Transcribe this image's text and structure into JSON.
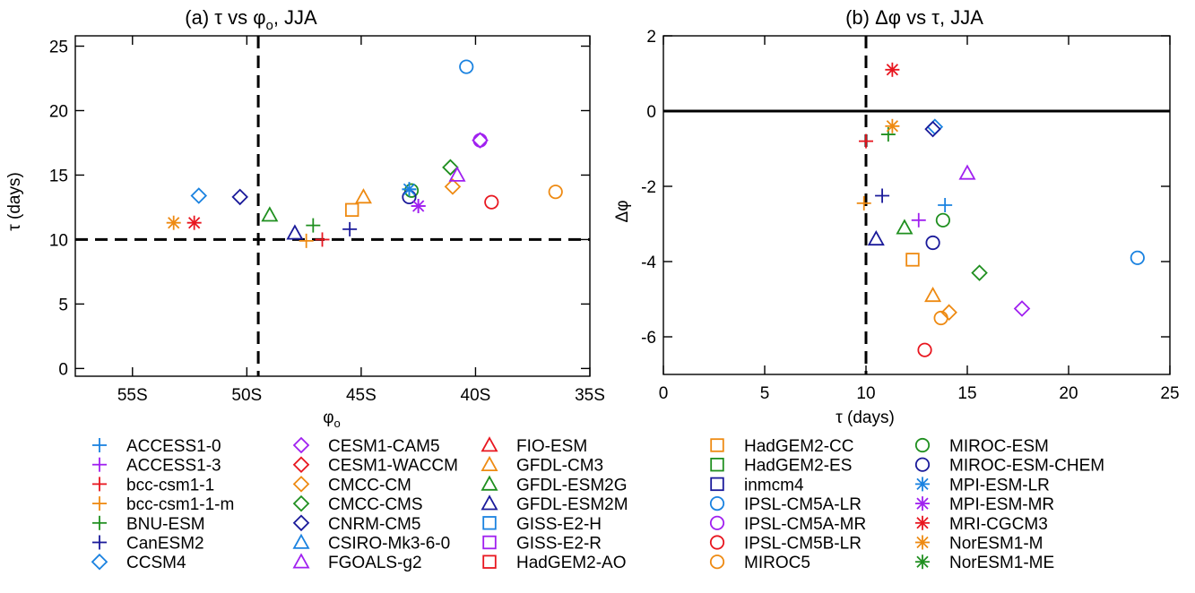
{
  "chart_data": [
    {
      "type": "scatter",
      "title": "(a) τ vs φ",
      "title_sub": "o",
      "title_tail": ", JJA",
      "xlabel": "φ",
      "xlabel_sub": "o",
      "ylabel": "τ (days)",
      "xlim": [
        -57.5,
        -35
      ],
      "ylim": [
        -0.6,
        25.8
      ],
      "xticks": [
        -55,
        -50,
        -45,
        -40,
        -35
      ],
      "xtick_labels": [
        "55S",
        "50S",
        "45S",
        "40S",
        "35S"
      ],
      "yticks": [
        0,
        5,
        10,
        15,
        20,
        25
      ],
      "ytick_labels": [
        "0",
        "5",
        "10",
        "15",
        "20",
        "25"
      ],
      "reference_lines": [
        {
          "axis": "x",
          "value": -49.5,
          "style": "dashed"
        },
        {
          "axis": "y",
          "value": 10,
          "style": "dashed"
        }
      ],
      "points": [
        {
          "model": "ACCESS1-0",
          "x": -42.9,
          "y": 13.9
        },
        {
          "model": "ACCESS1-3",
          "x": -42.5,
          "y": 12.6
        },
        {
          "model": "bcc-csm1-1",
          "x": -46.7,
          "y": 10.0
        },
        {
          "model": "bcc-csm1-1-m",
          "x": -47.4,
          "y": 9.9
        },
        {
          "model": "BNU-ESM",
          "x": -47.1,
          "y": 11.1
        },
        {
          "model": "CanESM2",
          "x": -45.5,
          "y": 10.8
        },
        {
          "model": "CCSM4",
          "x": -52.1,
          "y": 13.4
        },
        {
          "model": "CESM1-CAM5",
          "x": -39.8,
          "y": 17.7
        },
        {
          "model": "CMCC-CM",
          "x": -41.0,
          "y": 14.1
        },
        {
          "model": "CMCC-CMS",
          "x": -41.1,
          "y": 15.6
        },
        {
          "model": "CNRM-CM5",
          "x": -50.3,
          "y": 13.3
        },
        {
          "model": "FGOALS-g2",
          "x": -40.8,
          "y": 15.0
        },
        {
          "model": "GFDL-CM3",
          "x": -44.9,
          "y": 13.3
        },
        {
          "model": "GFDL-ESM2G",
          "x": -49.0,
          "y": 11.9
        },
        {
          "model": "GFDL-ESM2M",
          "x": -47.9,
          "y": 10.5
        },
        {
          "model": "HadGEM2-CC",
          "x": -45.4,
          "y": 12.3
        },
        {
          "model": "IPSL-CM5A-LR",
          "x": -40.4,
          "y": 23.4
        },
        {
          "model": "IPSL-CM5A-MR",
          "x": -39.8,
          "y": 17.7
        },
        {
          "model": "IPSL-CM5B-LR",
          "x": -39.3,
          "y": 12.9
        },
        {
          "model": "MIROC5",
          "x": -36.5,
          "y": 13.7
        },
        {
          "model": "MIROC-ESM",
          "x": -42.8,
          "y": 13.8
        },
        {
          "model": "MIROC-ESM-CHEM",
          "x": -42.9,
          "y": 13.3
        },
        {
          "model": "MPI-ESM-LR",
          "x": -42.9,
          "y": 13.9
        },
        {
          "model": "MPI-ESM-MR",
          "x": -42.5,
          "y": 12.6
        },
        {
          "model": "MRI-CGCM3",
          "x": -52.3,
          "y": 11.3
        },
        {
          "model": "NorESM1-M",
          "x": -53.2,
          "y": 11.3
        }
      ]
    },
    {
      "type": "scatter",
      "title": "(b) Δφ vs τ, JJA",
      "xlabel": "τ (days)",
      "ylabel": "Δφ",
      "xlim": [
        0,
        25
      ],
      "ylim": [
        -7,
        2
      ],
      "xticks": [
        0,
        5,
        10,
        15,
        20,
        25
      ],
      "xtick_labels": [
        "0",
        "5",
        "10",
        "15",
        "20",
        "25"
      ],
      "yticks": [
        -6,
        -4,
        -2,
        0,
        2
      ],
      "ytick_labels": [
        "-6",
        "-4",
        "-2",
        "0",
        "2"
      ],
      "reference_lines": [
        {
          "axis": "x",
          "value": 10,
          "style": "dashed"
        },
        {
          "axis": "y",
          "value": 0,
          "style": "solid"
        }
      ],
      "points": [
        {
          "model": "ACCESS1-0",
          "x": 13.9,
          "y": -2.5
        },
        {
          "model": "ACCESS1-3",
          "x": 12.6,
          "y": -2.9
        },
        {
          "model": "bcc-csm1-1",
          "x": 10.0,
          "y": -0.8
        },
        {
          "model": "bcc-csm1-1-m",
          "x": 9.9,
          "y": -2.45
        },
        {
          "model": "BNU-ESM",
          "x": 11.1,
          "y": -0.62
        },
        {
          "model": "CanESM2",
          "x": 10.8,
          "y": -2.25
        },
        {
          "model": "CCSM4",
          "x": 13.4,
          "y": -0.42
        },
        {
          "model": "CESM1-CAM5",
          "x": 17.7,
          "y": -5.25
        },
        {
          "model": "CMCC-CM",
          "x": 14.1,
          "y": -5.35
        },
        {
          "model": "CMCC-CMS",
          "x": 15.6,
          "y": -4.3
        },
        {
          "model": "CNRM-CM5",
          "x": 13.3,
          "y": -0.48
        },
        {
          "model": "FGOALS-g2",
          "x": 15.0,
          "y": -1.65
        },
        {
          "model": "GFDL-CM3",
          "x": 13.3,
          "y": -4.9
        },
        {
          "model": "GFDL-ESM2G",
          "x": 11.9,
          "y": -3.1
        },
        {
          "model": "GFDL-ESM2M",
          "x": 10.5,
          "y": -3.4
        },
        {
          "model": "HadGEM2-CC",
          "x": 12.3,
          "y": -3.95
        },
        {
          "model": "IPSL-CM5A-LR",
          "x": 23.4,
          "y": -3.9
        },
        {
          "model": "IPSL-CM5B-LR",
          "x": 12.9,
          "y": -6.35
        },
        {
          "model": "MIROC5",
          "x": 13.7,
          "y": -5.5
        },
        {
          "model": "MIROC-ESM",
          "x": 13.8,
          "y": -2.9
        },
        {
          "model": "MIROC-ESM-CHEM",
          "x": 13.3,
          "y": -3.5
        },
        {
          "model": "MRI-CGCM3",
          "x": 11.3,
          "y": 1.1
        },
        {
          "model": "NorESM1-M",
          "x": 11.3,
          "y": -0.4
        }
      ]
    }
  ],
  "legend": [
    {
      "name": "ACCESS1-0",
      "marker": "plus",
      "color": "#1a82e0"
    },
    {
      "name": "ACCESS1-3",
      "marker": "plus",
      "color": "#a020f0"
    },
    {
      "name": "bcc-csm1-1",
      "marker": "plus",
      "color": "#e8161f"
    },
    {
      "name": "bcc-csm1-1-m",
      "marker": "plus",
      "color": "#ee8a12"
    },
    {
      "name": "BNU-ESM",
      "marker": "plus",
      "color": "#1f8f1f"
    },
    {
      "name": "CanESM2",
      "marker": "plus",
      "color": "#1a1a9a"
    },
    {
      "name": "CCSM4",
      "marker": "diamond",
      "color": "#1a82e0"
    },
    {
      "name": "CESM1-CAM5",
      "marker": "diamond",
      "color": "#a020f0"
    },
    {
      "name": "CESM1-WACCM",
      "marker": "diamond",
      "color": "#e8161f"
    },
    {
      "name": "CMCC-CM",
      "marker": "diamond",
      "color": "#ee8a12"
    },
    {
      "name": "CMCC-CMS",
      "marker": "diamond",
      "color": "#1f8f1f"
    },
    {
      "name": "CNRM-CM5",
      "marker": "diamond",
      "color": "#1a1a9a"
    },
    {
      "name": "CSIRO-Mk3-6-0",
      "marker": "triangle",
      "color": "#1a82e0"
    },
    {
      "name": "FGOALS-g2",
      "marker": "triangle",
      "color": "#a020f0"
    },
    {
      "name": "FIO-ESM",
      "marker": "triangle",
      "color": "#e8161f"
    },
    {
      "name": "GFDL-CM3",
      "marker": "triangle",
      "color": "#ee8a12"
    },
    {
      "name": "GFDL-ESM2G",
      "marker": "triangle",
      "color": "#1f8f1f"
    },
    {
      "name": "GFDL-ESM2M",
      "marker": "triangle",
      "color": "#1a1a9a"
    },
    {
      "name": "GISS-E2-H",
      "marker": "square",
      "color": "#1a82e0"
    },
    {
      "name": "GISS-E2-R",
      "marker": "square",
      "color": "#a020f0"
    },
    {
      "name": "HadGEM2-AO",
      "marker": "square",
      "color": "#e8161f"
    },
    {
      "name": "HadGEM2-CC",
      "marker": "square",
      "color": "#ee8a12"
    },
    {
      "name": "HadGEM2-ES",
      "marker": "square",
      "color": "#1f8f1f"
    },
    {
      "name": "inmcm4",
      "marker": "square",
      "color": "#1a1a9a"
    },
    {
      "name": "IPSL-CM5A-LR",
      "marker": "circle",
      "color": "#1a82e0"
    },
    {
      "name": "IPSL-CM5A-MR",
      "marker": "circle",
      "color": "#a020f0"
    },
    {
      "name": "IPSL-CM5B-LR",
      "marker": "circle",
      "color": "#e8161f"
    },
    {
      "name": "MIROC5",
      "marker": "circle",
      "color": "#ee8a12"
    },
    {
      "name": "MIROC-ESM",
      "marker": "circle",
      "color": "#1f8f1f"
    },
    {
      "name": "MIROC-ESM-CHEM",
      "marker": "circle",
      "color": "#1a1a9a"
    },
    {
      "name": "MPI-ESM-LR",
      "marker": "star",
      "color": "#1a82e0"
    },
    {
      "name": "MPI-ESM-MR",
      "marker": "star",
      "color": "#a020f0"
    },
    {
      "name": "MRI-CGCM3",
      "marker": "star",
      "color": "#e8161f"
    },
    {
      "name": "NorESM1-M",
      "marker": "star",
      "color": "#ee8a12"
    },
    {
      "name": "NorESM1-ME",
      "marker": "star",
      "color": "#1f8f1f"
    }
  ]
}
